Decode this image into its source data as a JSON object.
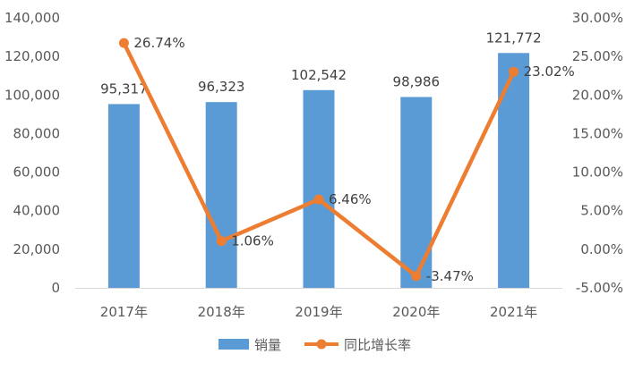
{
  "chart_data": {
    "type": "bar",
    "categories": [
      "2017年",
      "2018年",
      "2019年",
      "2020年",
      "2021年"
    ],
    "series": [
      {
        "name": "销量",
        "type": "bar",
        "axis": "left",
        "color": "#5B9BD5",
        "values": [
          95317,
          96323,
          102542,
          98986,
          121772
        ],
        "labels": [
          "95,317",
          "96,323",
          "102,542",
          "98,986",
          "121,772"
        ]
      },
      {
        "name": "同比增长率",
        "type": "line",
        "axis": "right",
        "color": "#ED7D31",
        "values": [
          26.74,
          1.06,
          6.46,
          -3.47,
          23.02
        ],
        "labels": [
          "26.74%",
          "1.06%",
          "6.46%",
          "-3.47%",
          "23.02%"
        ]
      }
    ],
    "y_left": {
      "ylim": [
        0,
        140000
      ],
      "ticks": [
        0,
        20000,
        40000,
        60000,
        80000,
        100000,
        120000,
        140000
      ],
      "tick_labels": [
        "0",
        "20,000",
        "40,000",
        "60,000",
        "80,000",
        "100,000",
        "120,000",
        "140,000"
      ]
    },
    "y_right": {
      "ylim": [
        -5,
        30
      ],
      "ticks": [
        -5,
        0,
        5,
        10,
        15,
        20,
        25,
        30
      ],
      "tick_labels": [
        "-5.00%",
        "0.00%",
        "5.00%",
        "10.00%",
        "15.00%",
        "20.00%",
        "25.00%",
        "30.00%"
      ]
    },
    "grid": false,
    "legend": "bottom",
    "axis_line_color": "#D9D9D9"
  }
}
